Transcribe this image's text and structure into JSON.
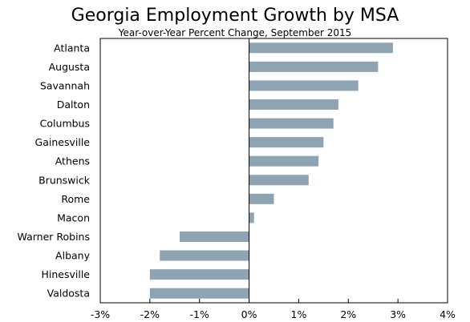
{
  "chart_data": {
    "type": "bar",
    "orientation": "horizontal",
    "title": "Georgia Employment Growth by MSA",
    "subtitle": "Year-over-Year Percent Change, September 2015",
    "categories": [
      "Atlanta",
      "Augusta",
      "Savannah",
      "Dalton",
      "Columbus",
      "Gainesville",
      "Athens",
      "Brunswick",
      "Rome",
      "Macon",
      "Warner Robins",
      "Albany",
      "Hinesville",
      "Valdosta"
    ],
    "values": [
      2.9,
      2.6,
      2.2,
      1.8,
      1.7,
      1.5,
      1.4,
      1.2,
      0.5,
      0.1,
      -1.4,
      -1.8,
      -2.0,
      -2.0
    ],
    "xlim": [
      -3,
      4
    ],
    "xticks": [
      -3,
      -2,
      -1,
      0,
      1,
      2,
      3,
      4
    ],
    "xtick_labels": [
      "-3%",
      "-2%",
      "-1%",
      "0%",
      "1%",
      "2%",
      "3%",
      "4%"
    ],
    "xlabel": "",
    "ylabel": "",
    "grid": false,
    "bar_color": "#8ea4b2"
  }
}
